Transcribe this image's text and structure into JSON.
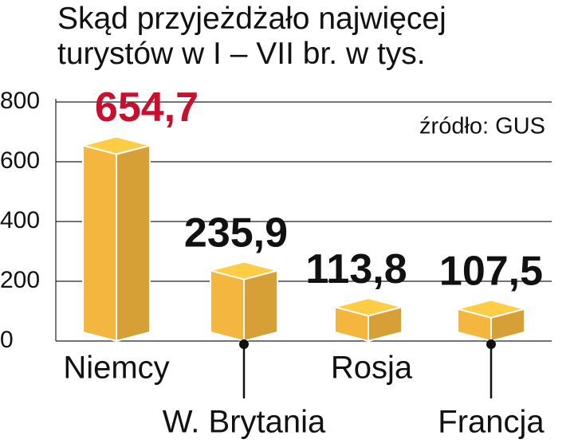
{
  "chart_data": {
    "type": "bar3d",
    "title": "Skąd przyjeżdżało najwięcej turystów w I – VII br. w tys.",
    "source": "źródło: GUS",
    "categories": [
      "Niemcy",
      "W. Brytania",
      "Rosja",
      "Francja"
    ],
    "values": [
      654.7,
      235.9,
      113.8,
      107.5
    ],
    "value_labels": [
      "654,7",
      "235,9",
      "113,8",
      "107,5"
    ],
    "value_label_colors": [
      "#c8102e",
      "#111111",
      "#111111",
      "#111111"
    ],
    "color": "#f4b63e",
    "ylim": [
      0,
      800
    ],
    "yticks": [
      0,
      200,
      400,
      600,
      800
    ],
    "grid": true
  }
}
